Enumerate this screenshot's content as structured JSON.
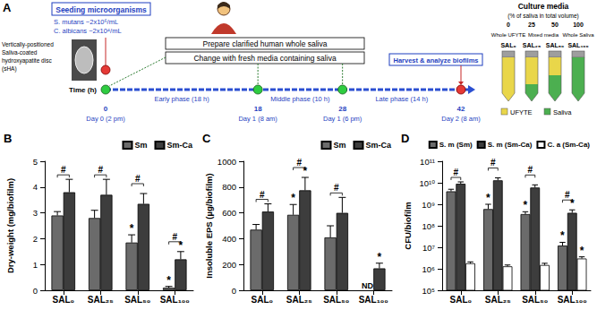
{
  "diagram": {
    "title": "A",
    "seeding": {
      "title": "Seeding microorganisms",
      "hour": 0,
      "lines": [
        "S. mutans ~2x10⁶/mL",
        "C. albicans ~2x10⁴/mL"
      ]
    },
    "disc": "Vertically-positioned Saliva-coated hydroxyapatite disc (sHA)",
    "steps": [
      "Prepare clarified human whole saliva",
      "Change with fresh media containing saliva"
    ],
    "timeline": {
      "label": "Time (h)",
      "points": [
        {
          "hour": 0,
          "day": "Day 0 (2 pm)"
        },
        {
          "hour": 18,
          "day": "Day 1 (8 am)"
        },
        {
          "hour": 28,
          "day": "Day 1 (6 pm)"
        },
        {
          "hour": 42,
          "day": "Day 2 (8 am)"
        }
      ],
      "phases": [
        {
          "label": "Early phase (18 h)",
          "start": 0,
          "end": 18
        },
        {
          "label": "Middle phase (10 h)",
          "start": 18,
          "end": 28
        },
        {
          "label": "Late phase (14 h)",
          "start": 28,
          "end": 42
        }
      ],
      "media_changes": [
        0,
        18,
        28
      ]
    },
    "harvest": {
      "label": "Harvest & analyze biofilms",
      "hour": 42
    },
    "culture_media": {
      "title": "Culture media",
      "subtitle": "(% of saliva in total volume)",
      "media": [
        {
          "name": "SAL₀",
          "saliva": 0
        },
        {
          "name": "SAL₂₅",
          "saliva": 25
        },
        {
          "name": "SAL₅₀",
          "saliva": 50
        },
        {
          "name": "SAL₁₀₀",
          "saliva": 100
        }
      ],
      "groups": [
        {
          "label": "Whole UFYTE",
          "from": 0,
          "to": 0
        },
        {
          "label": "Mixed media",
          "from": 1,
          "to": 2
        },
        {
          "label": "Whole Saliva",
          "from": 3,
          "to": 3
        }
      ],
      "legend": [
        {
          "name": "UFYTE",
          "color": "#e9d64a"
        },
        {
          "name": "Saliva",
          "color": "#4caf50"
        }
      ]
    }
  },
  "chart_data": [
    {
      "title": "B",
      "type": "bar",
      "ylabel": "Dry-weight (mg/biofilm)",
      "categories": [
        "SAL₀",
        "SAL₂₅",
        "SAL₅₀",
        "SAL₁₀₀"
      ],
      "series": [
        {
          "name": "Sm",
          "color": "#6b6b6b",
          "values": [
            2.9,
            2.8,
            1.85,
            0.1
          ],
          "error": [
            0.15,
            0.3,
            0.3,
            0.05
          ]
        },
        {
          "name": "Sm-Ca",
          "color": "#3d3d3d",
          "values": [
            3.8,
            3.7,
            3.35,
            1.2
          ],
          "error": [
            0.5,
            0.6,
            0.4,
            0.3
          ]
        }
      ],
      "ylim": [
        0,
        5
      ],
      "yticks": [
        0,
        1,
        2,
        3,
        4,
        5
      ],
      "grid": false,
      "legend": "top-right",
      "annotations": [
        {
          "text": "#",
          "category": "SAL₀",
          "series": [
            "Sm",
            "Sm-Ca"
          ]
        },
        {
          "text": "#",
          "category": "SAL₂₅",
          "series": [
            "Sm",
            "Sm-Ca"
          ]
        },
        {
          "text": "#",
          "category": "SAL₅₀",
          "series": [
            "Sm",
            "Sm-Ca"
          ]
        },
        {
          "text": "#",
          "category": "SAL₁₀₀",
          "series": [
            "Sm",
            "Sm-Ca"
          ]
        },
        {
          "text": "*",
          "category": "SAL₅₀",
          "series": [
            "Sm"
          ]
        },
        {
          "text": "*",
          "category": "SAL₁₀₀",
          "series": [
            "Sm"
          ]
        },
        {
          "text": "*",
          "category": "SAL₁₀₀",
          "series": [
            "Sm-Ca"
          ]
        }
      ]
    },
    {
      "title": "C",
      "type": "bar",
      "ylabel": "Insoluble EPS (µg/biofilm)",
      "categories": [
        "SAL₀",
        "SAL₂₅",
        "SAL₅₀",
        "SAL₁₀₀"
      ],
      "series": [
        {
          "name": "Sm",
          "color": "#6b6b6b",
          "values": [
            470,
            585,
            410,
            null
          ],
          "error": [
            40,
            80,
            90,
            null
          ]
        },
        {
          "name": "Sm-Ca",
          "color": "#3d3d3d",
          "values": [
            610,
            775,
            600,
            170
          ],
          "error": [
            60,
            100,
            120,
            40
          ]
        }
      ],
      "ylim": [
        0,
        1000
      ],
      "yticks": [
        0,
        200,
        400,
        600,
        800,
        1000
      ],
      "grid": false,
      "legend": "top-right",
      "annotations": [
        {
          "text": "#",
          "category": "SAL₀",
          "series": [
            "Sm",
            "Sm-Ca"
          ]
        },
        {
          "text": "#",
          "category": "SAL₂₅",
          "series": [
            "Sm",
            "Sm-Ca"
          ]
        },
        {
          "text": "#",
          "category": "SAL₅₀",
          "series": [
            "Sm",
            "Sm-Ca"
          ]
        },
        {
          "text": "*",
          "category": "SAL₂₅",
          "series": [
            "Sm"
          ]
        },
        {
          "text": "*",
          "category": "SAL₂₅",
          "series": [
            "Sm-Ca"
          ]
        },
        {
          "text": "ND",
          "category": "SAL₁₀₀",
          "series": [
            "Sm"
          ]
        },
        {
          "text": "*",
          "category": "SAL₁₀₀",
          "series": [
            "Sm-Ca"
          ]
        }
      ]
    },
    {
      "title": "D",
      "type": "bar",
      "ylabel": "CFU/biofilm",
      "log": "y",
      "categories": [
        "SAL₀",
        "SAL₂₅",
        "SAL₅₀",
        "SAL₁₀₀"
      ],
      "series": [
        {
          "name": "S. m (Sm)",
          "color": "#6b6b6b",
          "values": [
            4000000000,
            600000000,
            350000000,
            12000000
          ],
          "error": [
            1000000000,
            400000000,
            100000000,
            5000000
          ]
        },
        {
          "name": "S. m (Sm-Ca)",
          "color": "#3d3d3d",
          "values": [
            9000000000,
            13000000000,
            6000000000,
            400000000
          ],
          "error": [
            2000000000,
            4000000000,
            2000000000,
            150000000
          ]
        },
        {
          "name": "C. a (Sm-Ca)",
          "color": "#ffffff",
          "values": [
            1800000,
            1300000,
            1500000,
            3000000
          ],
          "error": [
            300000,
            200000,
            300000,
            600000
          ]
        }
      ],
      "ylim": [
        100000,
        100000000000
      ],
      "yticks": [
        {
          "value": 100000,
          "label": "10⁵"
        },
        {
          "value": 1000000,
          "label": "10⁶"
        },
        {
          "value": 10000000,
          "label": "10⁷"
        },
        {
          "value": 100000000,
          "label": "10⁸"
        },
        {
          "value": 1000000000,
          "label": "10⁹"
        },
        {
          "value": 10000000000,
          "label": "10¹⁰"
        },
        {
          "value": 100000000000,
          "label": "10¹¹"
        }
      ],
      "grid": false,
      "legend": "top-right",
      "annotations": [
        {
          "text": "#",
          "category": "SAL₀",
          "series": [
            "S. m (Sm)",
            "S. m (Sm-Ca)"
          ]
        },
        {
          "text": "#",
          "category": "SAL₂₅",
          "series": [
            "S. m (Sm)",
            "S. m (Sm-Ca)"
          ]
        },
        {
          "text": "#",
          "category": "SAL₅₀",
          "series": [
            "S. m (Sm)",
            "S. m (Sm-Ca)"
          ]
        },
        {
          "text": "#",
          "category": "SAL₁₀₀",
          "series": [
            "S. m (Sm)",
            "S. m (Sm-Ca)"
          ]
        },
        {
          "text": "*",
          "category": "SAL₂₅",
          "series": [
            "S. m (Sm)"
          ]
        },
        {
          "text": "*",
          "category": "SAL₅₀",
          "series": [
            "S. m (Sm)"
          ]
        },
        {
          "text": "*",
          "category": "SAL₁₀₀",
          "series": [
            "S. m (Sm)"
          ]
        },
        {
          "text": "*",
          "category": "SAL₁₀₀",
          "series": [
            "S. m (Sm-Ca)"
          ]
        },
        {
          "text": "*",
          "category": "SAL₁₀₀",
          "series": [
            "C. a (Sm-Ca)"
          ]
        }
      ]
    }
  ]
}
